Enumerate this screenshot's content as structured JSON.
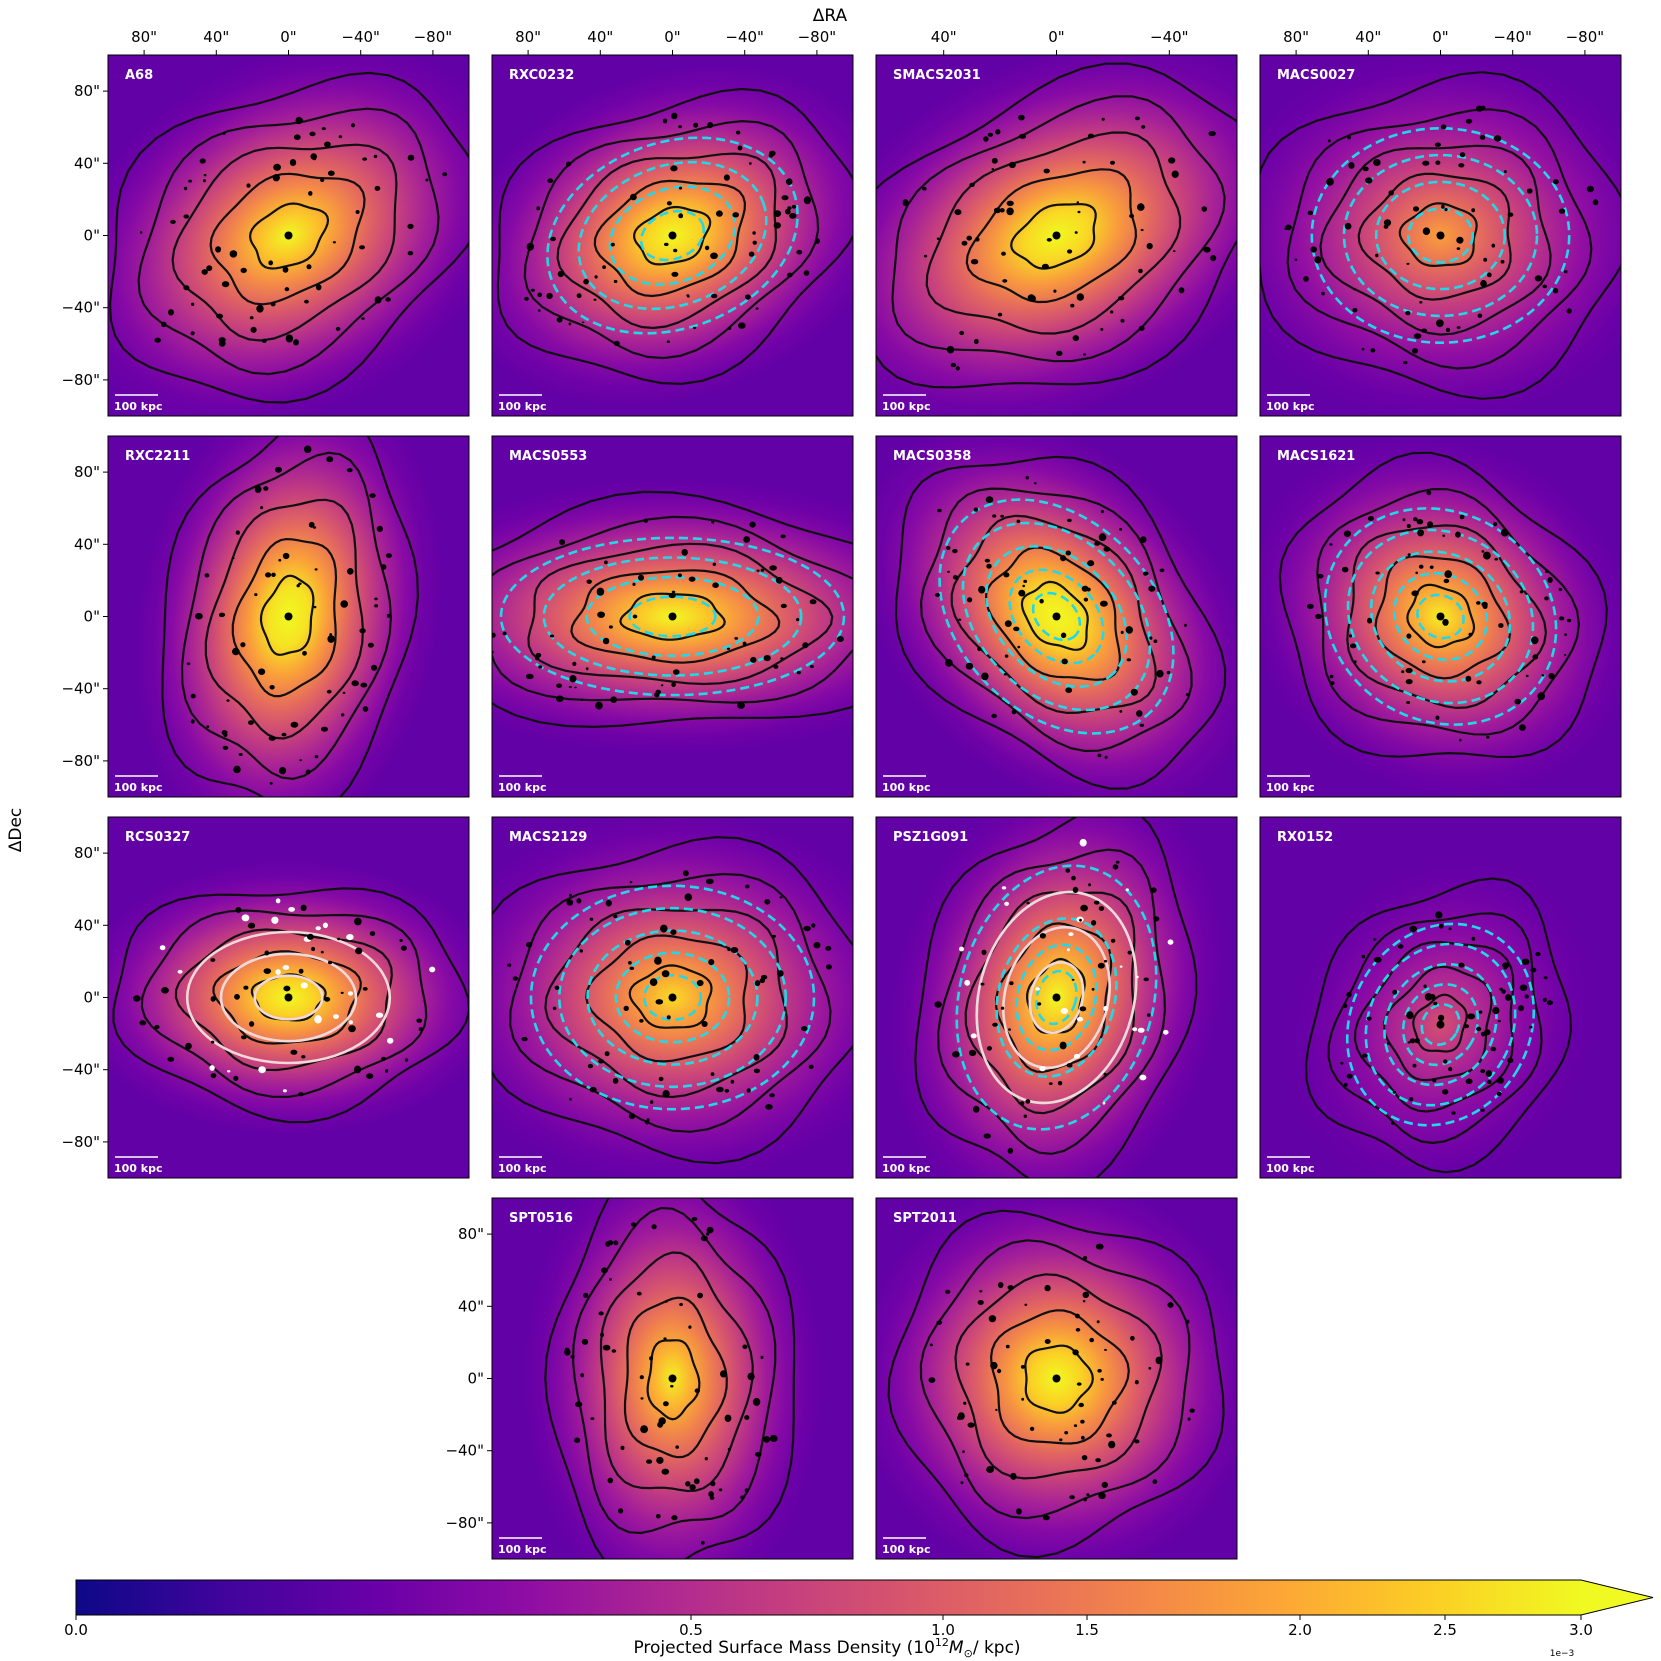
{
  "chart_data": {
    "type": "heatmap",
    "description_axes": {
      "xlabel": "ΔRA",
      "ylabel": "ΔDec",
      "x_ticks": [
        "80\"",
        "40\"",
        "0\"",
        "−40\"",
        "−80\""
      ],
      "x_ticks_wide": [
        "40\"",
        "0\"",
        "−40\""
      ],
      "y_ticks": [
        "80\"",
        "40\"",
        "0\"",
        "−40\"",
        "−80\""
      ],
      "xlim_arcsec": [
        100,
        -100
      ],
      "ylim_arcsec": [
        -100,
        100
      ]
    },
    "scale_bar_label": "100 kpc",
    "colorbar": {
      "label_prefix": "Projected Surface Mass Density (10",
      "label_exp": "12",
      "label_mid": "M",
      "label_sub": "⊙",
      "label_suffix": "/ kpc)",
      "ticks": [
        "0.0",
        "0.5",
        "1.0",
        "1.5",
        "2.0",
        "2.5",
        "3.0"
      ],
      "tick_values": [
        0.0,
        0.5,
        1.0,
        1.5,
        2.0,
        2.5,
        3.0
      ],
      "offset_text": "1e−3",
      "range": [
        0.0,
        3.0
      ],
      "extend": "max",
      "colormap": "plasma"
    },
    "colors": {
      "mass_contour": "#111111",
      "dashed_contour": "#22d8e8",
      "white_contour": "#f2d8d8",
      "galaxy": "#000000"
    },
    "panels": [
      {
        "name": "A68",
        "peak": 0.85,
        "cx": 0,
        "cy": 0,
        "a": 95,
        "b": 70,
        "angle": -30,
        "dashed": 0,
        "white": false
      },
      {
        "name": "RXC0232",
        "peak": 0.9,
        "cx": 0,
        "cy": 0,
        "a": 90,
        "b": 65,
        "angle": -20,
        "dashed": 4,
        "white": false
      },
      {
        "name": "SMACS2031",
        "peak": 0.92,
        "cx": 0,
        "cy": 0,
        "a": 105,
        "b": 70,
        "angle": -25,
        "dashed": 0,
        "white": false
      },
      {
        "name": "MACS0027",
        "peak": 0.6,
        "cx": 0,
        "cy": 0,
        "a": 90,
        "b": 75,
        "angle": 0,
        "dashed": 4,
        "white": false
      },
      {
        "name": "RXC2211",
        "peak": 0.95,
        "cx": 0,
        "cy": 0,
        "a": 60,
        "b": 95,
        "angle": 10,
        "dashed": 0,
        "white": false
      },
      {
        "name": "MACS0553",
        "peak": 0.85,
        "cx": 0,
        "cy": 0,
        "a": 120,
        "b": 55,
        "angle": 0,
        "dashed": 4,
        "white": false
      },
      {
        "name": "MACS0358",
        "peak": 0.95,
        "cx": 0,
        "cy": 0,
        "a": 90,
        "b": 65,
        "angle": 45,
        "dashed": 5,
        "white": false
      },
      {
        "name": "MACS1621",
        "peak": 0.8,
        "cx": 0,
        "cy": 0,
        "a": 80,
        "b": 70,
        "angle": 30,
        "dashed": 5,
        "white": false
      },
      {
        "name": "RCS0327",
        "peak": 0.9,
        "cx": 0,
        "cy": 0,
        "a": 85,
        "b": 55,
        "angle": 0,
        "dashed": 0,
        "white": true
      },
      {
        "name": "MACS2129",
        "peak": 0.75,
        "cx": 0,
        "cy": 0,
        "a": 95,
        "b": 75,
        "angle": 0,
        "dashed": 5,
        "white": false
      },
      {
        "name": "PSZ1G091",
        "peak": 0.85,
        "cx": 0,
        "cy": 0,
        "a": 65,
        "b": 90,
        "angle": 15,
        "dashed": 5,
        "white": true
      },
      {
        "name": "RX0152",
        "peak": 0.35,
        "cx": 0,
        "cy": -15,
        "a": 60,
        "b": 70,
        "angle": 30,
        "dashed": 5,
        "white": false
      },
      {
        "name": "SPT0516",
        "peak": 0.8,
        "cx": 0,
        "cy": 0,
        "a": 60,
        "b": 95,
        "angle": 0,
        "dashed": 0,
        "white": false
      },
      {
        "name": "SPT2011",
        "peak": 0.9,
        "cx": 0,
        "cy": 0,
        "a": 80,
        "b": 80,
        "angle": 0,
        "dashed": 0,
        "white": false
      }
    ]
  }
}
